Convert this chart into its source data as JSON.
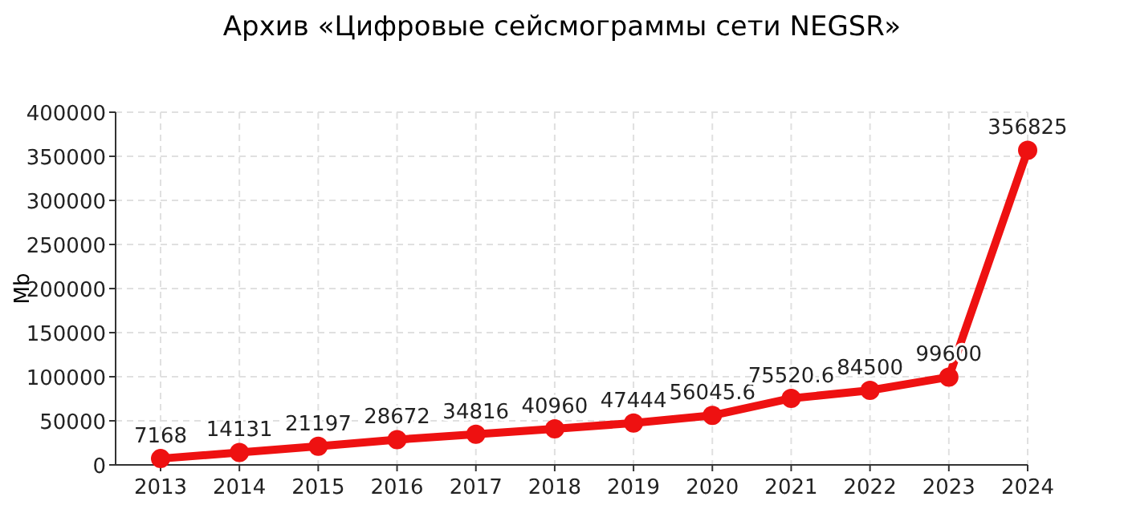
{
  "chart_data": {
    "type": "line",
    "title": "Архив «Цифровые сейсмограммы сети NEGSR»",
    "ylabel": "Mb",
    "categories": [
      "2013",
      "2014",
      "2015",
      "2016",
      "2017",
      "2018",
      "2019",
      "2020",
      "2021",
      "2022",
      "2023",
      "2024"
    ],
    "series": [
      {
        "color": "#ee1111",
        "values": [
          7168,
          14131,
          21197,
          28672,
          34816,
          40960,
          47444,
          56045.6,
          75520.6,
          84500,
          99600,
          356825
        ]
      }
    ],
    "ylim": [
      0,
      400000
    ],
    "yticks": [
      0,
      50000,
      100000,
      150000,
      200000,
      250000,
      300000,
      350000,
      400000
    ],
    "grid": true,
    "marker": "circle",
    "line_style": "solid",
    "data_labels": true
  }
}
